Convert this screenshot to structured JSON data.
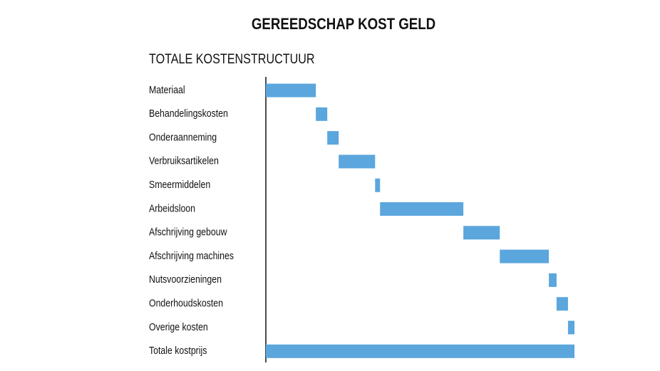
{
  "chart_data": {
    "type": "waterfall",
    "title": "GEREEDSCHAP KOST GELD",
    "subtitle": "TOTALE KOSTENSTRUCTUUR",
    "categories": [
      "Materiaal",
      "Behandelingskosten",
      "Onderaanneming",
      "Verbruiksartikelen",
      "Smeermiddelen",
      "Arbeidsloon",
      "Afschrijving gebouw",
      "Afschrijving machines",
      "Nutsvoorzieningen",
      "Onderhoudskosten",
      "Overige kosten",
      "Totale kostprijs"
    ],
    "values": [
      16.2,
      3.7,
      3.7,
      11.8,
      1.6,
      27,
      11.8,
      15.9,
      2.5,
      3.7,
      2.1,
      100
    ],
    "color": "#5ba6dd",
    "xlim": [
      0,
      100
    ]
  }
}
